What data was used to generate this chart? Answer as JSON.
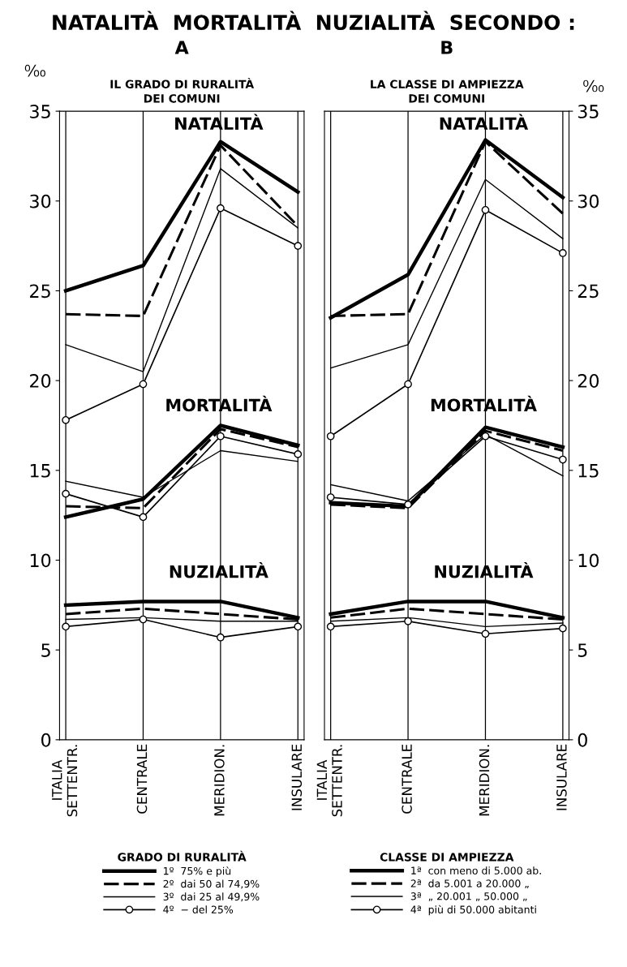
{
  "chart_data": [
    {
      "type": "line",
      "title": "A",
      "subtitle": "IL GRADO DI RURALITÀ\nDEI COMUNI",
      "ylabel": "⁰⁄₀₀",
      "legend_title": "GRADO DI RURALITÀ",
      "categories": [
        "ITALIA\nSETTENTR.",
        "CENTRALE",
        "MERIDION.",
        "INSULARE"
      ],
      "ylim": [
        0,
        35
      ],
      "yticks": [
        0,
        5,
        10,
        15,
        20,
        25,
        30,
        35
      ],
      "grid": "x",
      "legend": "bottom",
      "annotations": [
        "NATALITÀ  MORTALITÀ  NUZIALITÀ  SECONDO :",
        "NATALITÀ",
        "MORTALITÀ",
        "NUZIALITÀ"
      ],
      "series": [
        {
          "name": "1º  75% e più",
          "color": "#000000",
          "line_style": "solid",
          "values": [
            25.0,
            26.4,
            33.3,
            30.5
          ]
        },
        {
          "name": "2º  dai 50 al 74,9%",
          "color": "#000000",
          "line_style": "dashed",
          "values": [
            23.7,
            23.6,
            33.1,
            28.6
          ]
        },
        {
          "name": "3º  dai 25 al 49,9%",
          "color": "#000000",
          "line_style": "solid",
          "values": [
            22.0,
            20.5,
            31.8,
            28.5
          ]
        },
        {
          "name": "4º  − del 25%",
          "color": "#000000",
          "line_style": "solid",
          "marker": "circle",
          "values": [
            17.8,
            19.8,
            29.6,
            27.5
          ]
        },
        {
          "color": "#000000",
          "line_style": "solid",
          "values": [
            12.4,
            13.4,
            17.5,
            16.4
          ]
        },
        {
          "color": "#000000",
          "line_style": "dashed",
          "values": [
            13.0,
            12.9,
            17.3,
            16.3
          ]
        },
        {
          "color": "#000000",
          "line_style": "solid",
          "values": [
            14.4,
            13.5,
            16.1,
            15.5
          ]
        },
        {
          "color": "#000000",
          "line_style": "solid",
          "marker": "circle",
          "values": [
            13.7,
            12.4,
            16.9,
            15.9
          ]
        },
        {
          "color": "#000000",
          "line_style": "solid",
          "values": [
            7.5,
            7.7,
            7.7,
            6.8
          ]
        },
        {
          "color": "#000000",
          "line_style": "dashed",
          "values": [
            7.0,
            7.3,
            7.0,
            6.7
          ]
        },
        {
          "color": "#000000",
          "line_style": "solid",
          "values": [
            6.7,
            6.8,
            6.6,
            6.6
          ]
        },
        {
          "color": "#000000",
          "line_style": "solid",
          "marker": "circle",
          "values": [
            6.3,
            6.7,
            5.7,
            6.3
          ]
        }
      ]
    },
    {
      "type": "line",
      "title": "B",
      "subtitle": "LA CLASSE DI AMPIEZZA\nDEI COMUNI",
      "ylabel": "⁰⁄₀₀",
      "legend_title": "CLASSE DI AMPIEZZA",
      "categories": [
        "ITALIA\nSETTENTR.",
        "CENTRALE",
        "MERIDION.",
        "INSULARE"
      ],
      "ylim": [
        0,
        35
      ],
      "yticks": [
        0,
        5,
        10,
        15,
        20,
        25,
        30,
        35
      ],
      "grid": "x",
      "legend": "bottom",
      "annotations": [
        "NATALITÀ",
        "MORTALITÀ",
        "NUZIALITÀ"
      ],
      "series": [
        {
          "name": "1ª  con meno di 5.000 ab.",
          "color": "#000000",
          "line_style": "solid",
          "values": [
            23.5,
            25.9,
            33.4,
            30.2
          ]
        },
        {
          "name": "2ª  da 5.001 a 20.000 „",
          "color": "#000000",
          "line_style": "dashed",
          "values": [
            23.6,
            23.7,
            33.3,
            29.3
          ]
        },
        {
          "name": "3ª  „ 20.001 „ 50.000 „",
          "color": "#000000",
          "line_style": "solid",
          "values": [
            20.7,
            22.0,
            31.2,
            27.9
          ]
        },
        {
          "name": "4ª  più di 50.000 abitanti",
          "color": "#000000",
          "line_style": "solid",
          "marker": "circle",
          "values": [
            16.9,
            19.8,
            29.5,
            27.1
          ]
        },
        {
          "color": "#000000",
          "line_style": "solid",
          "values": [
            13.2,
            13.0,
            17.4,
            16.3
          ]
        },
        {
          "color": "#000000",
          "line_style": "dashed",
          "values": [
            13.1,
            12.9,
            17.2,
            16.1
          ]
        },
        {
          "color": "#000000",
          "line_style": "solid",
          "values": [
            14.2,
            13.3,
            17.0,
            14.7
          ]
        },
        {
          "color": "#000000",
          "line_style": "solid",
          "marker": "circle",
          "values": [
            13.5,
            13.1,
            16.9,
            15.6
          ]
        },
        {
          "color": "#000000",
          "line_style": "solid",
          "values": [
            7.0,
            7.7,
            7.7,
            6.8
          ]
        },
        {
          "color": "#000000",
          "line_style": "dashed",
          "values": [
            6.8,
            7.3,
            7.0,
            6.7
          ]
        },
        {
          "color": "#000000",
          "line_style": "solid",
          "values": [
            6.6,
            6.8,
            6.3,
            6.5
          ]
        },
        {
          "color": "#000000",
          "line_style": "solid",
          "marker": "circle",
          "values": [
            6.3,
            6.6,
            5.9,
            6.2
          ]
        }
      ]
    }
  ]
}
